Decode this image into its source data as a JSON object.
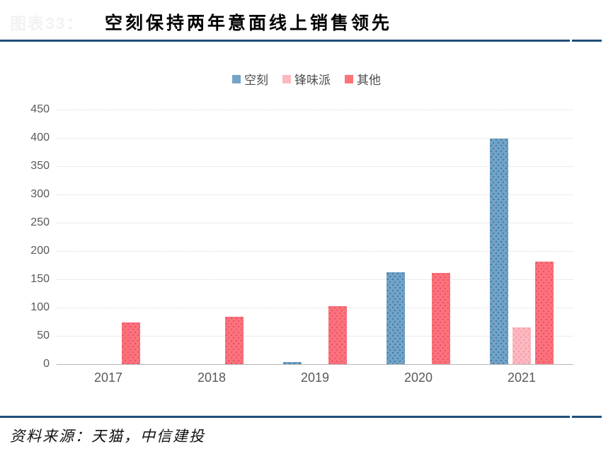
{
  "header": {
    "chart_label": "图表33：",
    "title": "空刻保持两年意面线上销售领先"
  },
  "chart_data": {
    "type": "bar",
    "title": "空刻保持两年意面线上销售领先",
    "categories": [
      "2017",
      "2018",
      "2019",
      "2020",
      "2021"
    ],
    "series": [
      {
        "name": "空刻",
        "color": "#74a4c6",
        "dot_color": "#3f7fae",
        "values": [
          null,
          null,
          4,
          163,
          399
        ]
      },
      {
        "name": "锋味派",
        "color": "#fcb9c0",
        "dot_color": "#f79aa8",
        "values": [
          null,
          null,
          null,
          null,
          65
        ]
      },
      {
        "name": "其他",
        "color": "#fb7478",
        "dot_color": "#ec4f7e",
        "values": [
          74,
          84,
          102,
          161,
          181
        ]
      }
    ],
    "ylim": [
      0,
      450
    ],
    "ytick_interval": 50,
    "yticks": [
      "450",
      "400",
      "350",
      "300",
      "250",
      "200",
      "150",
      "100",
      "50",
      "0"
    ],
    "grid": "horizontal-dotted",
    "legend_position": "top-center"
  },
  "footer": {
    "source_text": "资料来源：天猫，中信建投"
  },
  "colors": {
    "accent_rule": "#1f4e79",
    "axis_text": "#595959",
    "gridline": "#d9d9d9",
    "title_text": "#000000"
  }
}
